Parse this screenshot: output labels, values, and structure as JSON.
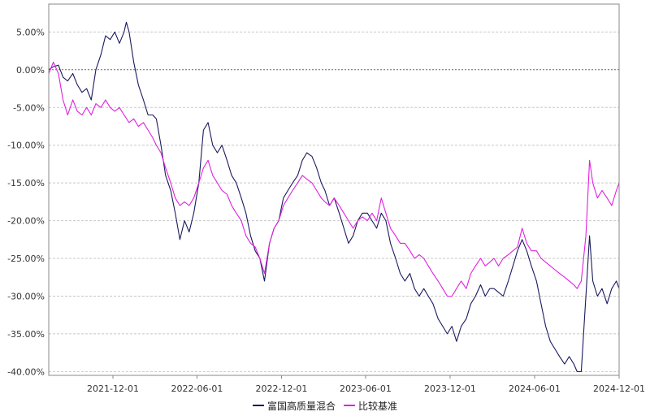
{
  "chart_data": {
    "type": "line",
    "title": "",
    "xlabel": "",
    "ylabel": "",
    "ylim": [
      -0.405,
      0.087
    ],
    "xlim": [
      "2021-07-15",
      "2024-12-01"
    ],
    "y_ticks": [
      {
        "value": 0.05,
        "label": "5.00%"
      },
      {
        "value": 0.0,
        "label": "0.00%"
      },
      {
        "value": -0.05,
        "label": "-5.00%"
      },
      {
        "value": -0.1,
        "label": "-10.00%"
      },
      {
        "value": -0.15,
        "label": "-15.00%"
      },
      {
        "value": -0.2,
        "label": "-20.00%"
      },
      {
        "value": -0.25,
        "label": "-25.00%"
      },
      {
        "value": -0.3,
        "label": "-30.00%"
      },
      {
        "value": -0.35,
        "label": "-35.00%"
      },
      {
        "value": -0.4,
        "label": "-40.00%"
      }
    ],
    "x_ticks": [
      {
        "value": "2021-12-01",
        "label": "2021-12-01"
      },
      {
        "value": "2022-06-01",
        "label": "2022-06-01"
      },
      {
        "value": "2022-12-01",
        "label": "2022-12-01"
      },
      {
        "value": "2023-06-01",
        "label": "2023-06-01"
      },
      {
        "value": "2023-12-01",
        "label": "2023-12-01"
      },
      {
        "value": "2024-06-01",
        "label": "2024-06-01"
      },
      {
        "value": "2024-12-01",
        "label": "2024-12-01"
      }
    ],
    "grid": true,
    "legend_position": "bottom-center",
    "series": [
      {
        "name": "富国高质量混合",
        "color": "#1a1a5e",
        "points": [
          [
            "2021-07-15",
            0.0
          ],
          [
            "2021-07-25",
            0.004
          ],
          [
            "2021-08-05",
            0.006
          ],
          [
            "2021-08-15",
            -0.01
          ],
          [
            "2021-08-25",
            -0.015
          ],
          [
            "2021-09-05",
            -0.005
          ],
          [
            "2021-09-15",
            -0.02
          ],
          [
            "2021-09-25",
            -0.03
          ],
          [
            "2021-10-05",
            -0.025
          ],
          [
            "2021-10-15",
            -0.04
          ],
          [
            "2021-10-25",
            0.0
          ],
          [
            "2021-11-05",
            0.02
          ],
          [
            "2021-11-15",
            0.045
          ],
          [
            "2021-11-25",
            0.04
          ],
          [
            "2021-12-05",
            0.05
          ],
          [
            "2021-12-15",
            0.035
          ],
          [
            "2021-12-25",
            0.05
          ],
          [
            "2021-12-30",
            0.063
          ],
          [
            "2022-01-05",
            0.05
          ],
          [
            "2022-01-15",
            0.01
          ],
          [
            "2022-01-25",
            -0.02
          ],
          [
            "2022-02-05",
            -0.04
          ],
          [
            "2022-02-15",
            -0.06
          ],
          [
            "2022-02-25",
            -0.06
          ],
          [
            "2022-03-05",
            -0.065
          ],
          [
            "2022-03-15",
            -0.1
          ],
          [
            "2022-03-25",
            -0.14
          ],
          [
            "2022-04-05",
            -0.16
          ],
          [
            "2022-04-15",
            -0.19
          ],
          [
            "2022-04-25",
            -0.225
          ],
          [
            "2022-05-05",
            -0.2
          ],
          [
            "2022-05-15",
            -0.215
          ],
          [
            "2022-05-25",
            -0.19
          ],
          [
            "2022-06-05",
            -0.15
          ],
          [
            "2022-06-15",
            -0.08
          ],
          [
            "2022-06-25",
            -0.07
          ],
          [
            "2022-07-05",
            -0.1
          ],
          [
            "2022-07-15",
            -0.11
          ],
          [
            "2022-07-25",
            -0.1
          ],
          [
            "2022-08-05",
            -0.12
          ],
          [
            "2022-08-15",
            -0.14
          ],
          [
            "2022-08-25",
            -0.15
          ],
          [
            "2022-09-05",
            -0.17
          ],
          [
            "2022-09-15",
            -0.19
          ],
          [
            "2022-09-25",
            -0.22
          ],
          [
            "2022-10-05",
            -0.24
          ],
          [
            "2022-10-15",
            -0.25
          ],
          [
            "2022-10-25",
            -0.28
          ],
          [
            "2022-11-05",
            -0.23
          ],
          [
            "2022-11-15",
            -0.21
          ],
          [
            "2022-11-25",
            -0.2
          ],
          [
            "2022-12-05",
            -0.17
          ],
          [
            "2022-12-15",
            -0.16
          ],
          [
            "2022-12-25",
            -0.15
          ],
          [
            "2023-01-05",
            -0.14
          ],
          [
            "2023-01-15",
            -0.12
          ],
          [
            "2023-01-25",
            -0.11
          ],
          [
            "2023-02-05",
            -0.115
          ],
          [
            "2023-02-15",
            -0.13
          ],
          [
            "2023-02-25",
            -0.15
          ],
          [
            "2023-03-05",
            -0.16
          ],
          [
            "2023-03-15",
            -0.18
          ],
          [
            "2023-03-25",
            -0.17
          ],
          [
            "2023-04-05",
            -0.19
          ],
          [
            "2023-04-15",
            -0.21
          ],
          [
            "2023-04-25",
            -0.23
          ],
          [
            "2023-05-05",
            -0.22
          ],
          [
            "2023-05-15",
            -0.2
          ],
          [
            "2023-05-25",
            -0.19
          ],
          [
            "2023-06-05",
            -0.19
          ],
          [
            "2023-06-15",
            -0.2
          ],
          [
            "2023-06-25",
            -0.21
          ],
          [
            "2023-07-05",
            -0.19
          ],
          [
            "2023-07-15",
            -0.2
          ],
          [
            "2023-07-25",
            -0.23
          ],
          [
            "2023-08-05",
            -0.25
          ],
          [
            "2023-08-15",
            -0.27
          ],
          [
            "2023-08-25",
            -0.28
          ],
          [
            "2023-09-05",
            -0.27
          ],
          [
            "2023-09-15",
            -0.29
          ],
          [
            "2023-09-25",
            -0.3
          ],
          [
            "2023-10-05",
            -0.29
          ],
          [
            "2023-10-15",
            -0.3
          ],
          [
            "2023-10-25",
            -0.31
          ],
          [
            "2023-11-05",
            -0.33
          ],
          [
            "2023-11-15",
            -0.34
          ],
          [
            "2023-11-25",
            -0.35
          ],
          [
            "2023-12-05",
            -0.34
          ],
          [
            "2023-12-15",
            -0.36
          ],
          [
            "2023-12-25",
            -0.34
          ],
          [
            "2024-01-05",
            -0.33
          ],
          [
            "2024-01-15",
            -0.31
          ],
          [
            "2024-01-25",
            -0.3
          ],
          [
            "2024-02-05",
            -0.285
          ],
          [
            "2024-02-15",
            -0.3
          ],
          [
            "2024-02-25",
            -0.29
          ],
          [
            "2024-03-05",
            -0.29
          ],
          [
            "2024-03-15",
            -0.295
          ],
          [
            "2024-03-25",
            -0.3
          ],
          [
            "2024-04-05",
            -0.28
          ],
          [
            "2024-04-15",
            -0.26
          ],
          [
            "2024-04-25",
            -0.24
          ],
          [
            "2024-05-05",
            -0.225
          ],
          [
            "2024-05-15",
            -0.24
          ],
          [
            "2024-05-25",
            -0.26
          ],
          [
            "2024-06-05",
            -0.28
          ],
          [
            "2024-06-15",
            -0.31
          ],
          [
            "2024-06-25",
            -0.34
          ],
          [
            "2024-07-05",
            -0.36
          ],
          [
            "2024-07-15",
            -0.37
          ],
          [
            "2024-07-25",
            -0.38
          ],
          [
            "2024-08-05",
            -0.39
          ],
          [
            "2024-08-15",
            -0.38
          ],
          [
            "2024-08-25",
            -0.39
          ],
          [
            "2024-09-01",
            -0.4
          ],
          [
            "2024-09-10",
            -0.4
          ],
          [
            "2024-09-20",
            -0.3
          ],
          [
            "2024-09-28",
            -0.22
          ],
          [
            "2024-10-05",
            -0.28
          ],
          [
            "2024-10-15",
            -0.3
          ],
          [
            "2024-10-25",
            -0.29
          ],
          [
            "2024-11-05",
            -0.31
          ],
          [
            "2024-11-15",
            -0.29
          ],
          [
            "2024-11-25",
            -0.28
          ],
          [
            "2024-12-01",
            -0.29
          ]
        ]
      },
      {
        "name": "比较基准",
        "color": "#e020e0",
        "points": [
          [
            "2021-07-15",
            -0.005
          ],
          [
            "2021-07-25",
            0.01
          ],
          [
            "2021-08-05",
            -0.005
          ],
          [
            "2021-08-15",
            -0.04
          ],
          [
            "2021-08-25",
            -0.06
          ],
          [
            "2021-09-05",
            -0.04
          ],
          [
            "2021-09-15",
            -0.055
          ],
          [
            "2021-09-25",
            -0.06
          ],
          [
            "2021-10-05",
            -0.05
          ],
          [
            "2021-10-15",
            -0.06
          ],
          [
            "2021-10-25",
            -0.045
          ],
          [
            "2021-11-05",
            -0.05
          ],
          [
            "2021-11-15",
            -0.04
          ],
          [
            "2021-11-25",
            -0.05
          ],
          [
            "2021-12-05",
            -0.055
          ],
          [
            "2021-12-15",
            -0.05
          ],
          [
            "2021-12-25",
            -0.06
          ],
          [
            "2022-01-05",
            -0.07
          ],
          [
            "2022-01-15",
            -0.065
          ],
          [
            "2022-01-25",
            -0.075
          ],
          [
            "2022-02-05",
            -0.07
          ],
          [
            "2022-02-15",
            -0.08
          ],
          [
            "2022-02-25",
            -0.09
          ],
          [
            "2022-03-05",
            -0.1
          ],
          [
            "2022-03-15",
            -0.11
          ],
          [
            "2022-03-25",
            -0.13
          ],
          [
            "2022-04-05",
            -0.15
          ],
          [
            "2022-04-15",
            -0.17
          ],
          [
            "2022-04-25",
            -0.18
          ],
          [
            "2022-05-05",
            -0.175
          ],
          [
            "2022-05-15",
            -0.18
          ],
          [
            "2022-05-25",
            -0.17
          ],
          [
            "2022-06-05",
            -0.15
          ],
          [
            "2022-06-15",
            -0.13
          ],
          [
            "2022-06-25",
            -0.12
          ],
          [
            "2022-07-05",
            -0.14
          ],
          [
            "2022-07-15",
            -0.15
          ],
          [
            "2022-07-25",
            -0.16
          ],
          [
            "2022-08-05",
            -0.165
          ],
          [
            "2022-08-15",
            -0.18
          ],
          [
            "2022-08-25",
            -0.19
          ],
          [
            "2022-09-05",
            -0.2
          ],
          [
            "2022-09-15",
            -0.22
          ],
          [
            "2022-09-25",
            -0.23
          ],
          [
            "2022-10-05",
            -0.235
          ],
          [
            "2022-10-15",
            -0.25
          ],
          [
            "2022-10-25",
            -0.27
          ],
          [
            "2022-11-05",
            -0.23
          ],
          [
            "2022-11-15",
            -0.21
          ],
          [
            "2022-11-25",
            -0.2
          ],
          [
            "2022-12-05",
            -0.18
          ],
          [
            "2022-12-15",
            -0.17
          ],
          [
            "2022-12-25",
            -0.16
          ],
          [
            "2023-01-05",
            -0.15
          ],
          [
            "2023-01-15",
            -0.14
          ],
          [
            "2023-01-25",
            -0.145
          ],
          [
            "2023-02-05",
            -0.15
          ],
          [
            "2023-02-15",
            -0.16
          ],
          [
            "2023-02-25",
            -0.17
          ],
          [
            "2023-03-05",
            -0.175
          ],
          [
            "2023-03-15",
            -0.18
          ],
          [
            "2023-03-25",
            -0.17
          ],
          [
            "2023-04-05",
            -0.18
          ],
          [
            "2023-04-15",
            -0.19
          ],
          [
            "2023-04-25",
            -0.2
          ],
          [
            "2023-05-05",
            -0.21
          ],
          [
            "2023-05-15",
            -0.2
          ],
          [
            "2023-05-25",
            -0.195
          ],
          [
            "2023-06-05",
            -0.2
          ],
          [
            "2023-06-15",
            -0.19
          ],
          [
            "2023-06-25",
            -0.2
          ],
          [
            "2023-07-05",
            -0.17
          ],
          [
            "2023-07-15",
            -0.19
          ],
          [
            "2023-07-25",
            -0.21
          ],
          [
            "2023-08-05",
            -0.22
          ],
          [
            "2023-08-15",
            -0.23
          ],
          [
            "2023-08-25",
            -0.23
          ],
          [
            "2023-09-05",
            -0.24
          ],
          [
            "2023-09-15",
            -0.25
          ],
          [
            "2023-09-25",
            -0.245
          ],
          [
            "2023-10-05",
            -0.25
          ],
          [
            "2023-10-15",
            -0.26
          ],
          [
            "2023-10-25",
            -0.27
          ],
          [
            "2023-11-05",
            -0.28
          ],
          [
            "2023-11-15",
            -0.29
          ],
          [
            "2023-11-25",
            -0.3
          ],
          [
            "2023-12-05",
            -0.3
          ],
          [
            "2023-12-15",
            -0.29
          ],
          [
            "2023-12-25",
            -0.28
          ],
          [
            "2024-01-05",
            -0.29
          ],
          [
            "2024-01-15",
            -0.27
          ],
          [
            "2024-01-25",
            -0.26
          ],
          [
            "2024-02-05",
            -0.25
          ],
          [
            "2024-02-15",
            -0.26
          ],
          [
            "2024-02-25",
            -0.255
          ],
          [
            "2024-03-05",
            -0.25
          ],
          [
            "2024-03-15",
            -0.26
          ],
          [
            "2024-03-25",
            -0.25
          ],
          [
            "2024-04-05",
            -0.245
          ],
          [
            "2024-04-15",
            -0.24
          ],
          [
            "2024-04-25",
            -0.235
          ],
          [
            "2024-05-05",
            -0.21
          ],
          [
            "2024-05-15",
            -0.23
          ],
          [
            "2024-05-25",
            -0.24
          ],
          [
            "2024-06-05",
            -0.24
          ],
          [
            "2024-06-15",
            -0.25
          ],
          [
            "2024-06-25",
            -0.255
          ],
          [
            "2024-07-05",
            -0.26
          ],
          [
            "2024-07-15",
            -0.265
          ],
          [
            "2024-07-25",
            -0.27
          ],
          [
            "2024-08-05",
            -0.275
          ],
          [
            "2024-08-15",
            -0.28
          ],
          [
            "2024-08-25",
            -0.285
          ],
          [
            "2024-09-01",
            -0.29
          ],
          [
            "2024-09-10",
            -0.28
          ],
          [
            "2024-09-20",
            -0.22
          ],
          [
            "2024-09-28",
            -0.12
          ],
          [
            "2024-10-05",
            -0.15
          ],
          [
            "2024-10-15",
            -0.17
          ],
          [
            "2024-10-25",
            -0.16
          ],
          [
            "2024-11-05",
            -0.17
          ],
          [
            "2024-11-15",
            -0.18
          ],
          [
            "2024-11-25",
            -0.16
          ],
          [
            "2024-12-01",
            -0.15
          ]
        ]
      }
    ]
  },
  "colors": {
    "frame": "#888888",
    "grid": "#c8c8c8",
    "zero_line": "#666666"
  }
}
